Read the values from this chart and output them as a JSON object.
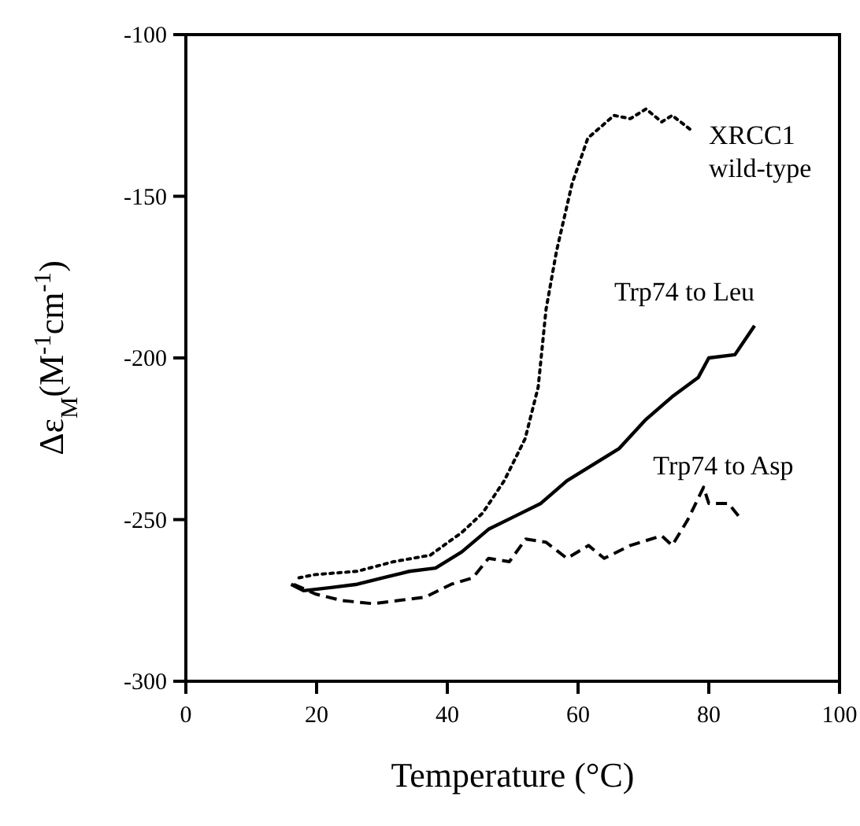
{
  "chart_data": {
    "type": "line",
    "xlabel": "Temperature (°C)",
    "ylabel": "Δε$_{M}$(M$^{-1}$cm$^{-1}$)",
    "xlim": [
      0,
      100
    ],
    "ylim": [
      -300,
      -100
    ],
    "xticks": [
      0,
      20,
      40,
      60,
      80,
      100
    ],
    "yticks": [
      -300,
      -250,
      -200,
      -150,
      -100
    ],
    "grid": false,
    "legend": false,
    "marker": "none",
    "series": [
      {
        "name": "XRCC1\nwild-type",
        "color": "#000000",
        "line_style": "dotted",
        "x": [
          17.3,
          19.8,
          26.2,
          31.8,
          37.4,
          42.2,
          45.4,
          48.7,
          51.9,
          53.9,
          55.1,
          56.7,
          59.1,
          61.5,
          65.5,
          68,
          70.4,
          72.8,
          74.4,
          77.6
        ],
        "values": [
          -268,
          -267,
          -266,
          -263,
          -261,
          -254,
          -248,
          -238,
          -225,
          -209,
          -185,
          -167,
          -146,
          -132,
          -125,
          -126,
          -123,
          -127,
          -125,
          -130
        ]
      },
      {
        "name": "Trp74 to Leu",
        "color": "#000000",
        "line_style": "solid",
        "x": [
          16.1,
          18,
          22.2,
          26.2,
          30.2,
          34.2,
          38.2,
          42.2,
          46.3,
          50.3,
          54.3,
          58.3,
          62.3,
          66.3,
          70.4,
          74.4,
          78.4,
          80,
          84,
          87
        ],
        "values": [
          -270,
          -272,
          -271,
          -270,
          -268,
          -266,
          -265,
          -260,
          -253,
          -249,
          -245,
          -238,
          -233,
          -228,
          -219,
          -212,
          -206,
          -200,
          -199,
          -190
        ]
      },
      {
        "name": "Trp74 to Asp",
        "color": "#000000",
        "line_style": "dashed",
        "x": [
          16.5,
          19.8,
          23.8,
          28.6,
          32.6,
          36.6,
          40.6,
          43.9,
          46.3,
          49.5,
          52,
          55.1,
          58.3,
          61.6,
          64,
          68,
          72.8,
          74.4,
          76.8,
          79.2,
          80,
          83,
          85
        ],
        "values": [
          -270,
          -273,
          -275,
          -276,
          -275,
          -274,
          -270,
          -268,
          -262,
          -263,
          -256,
          -257,
          -262,
          -258,
          -262,
          -258,
          -255,
          -258,
          -250,
          -240,
          -245,
          -245,
          -250
        ]
      }
    ]
  }
}
